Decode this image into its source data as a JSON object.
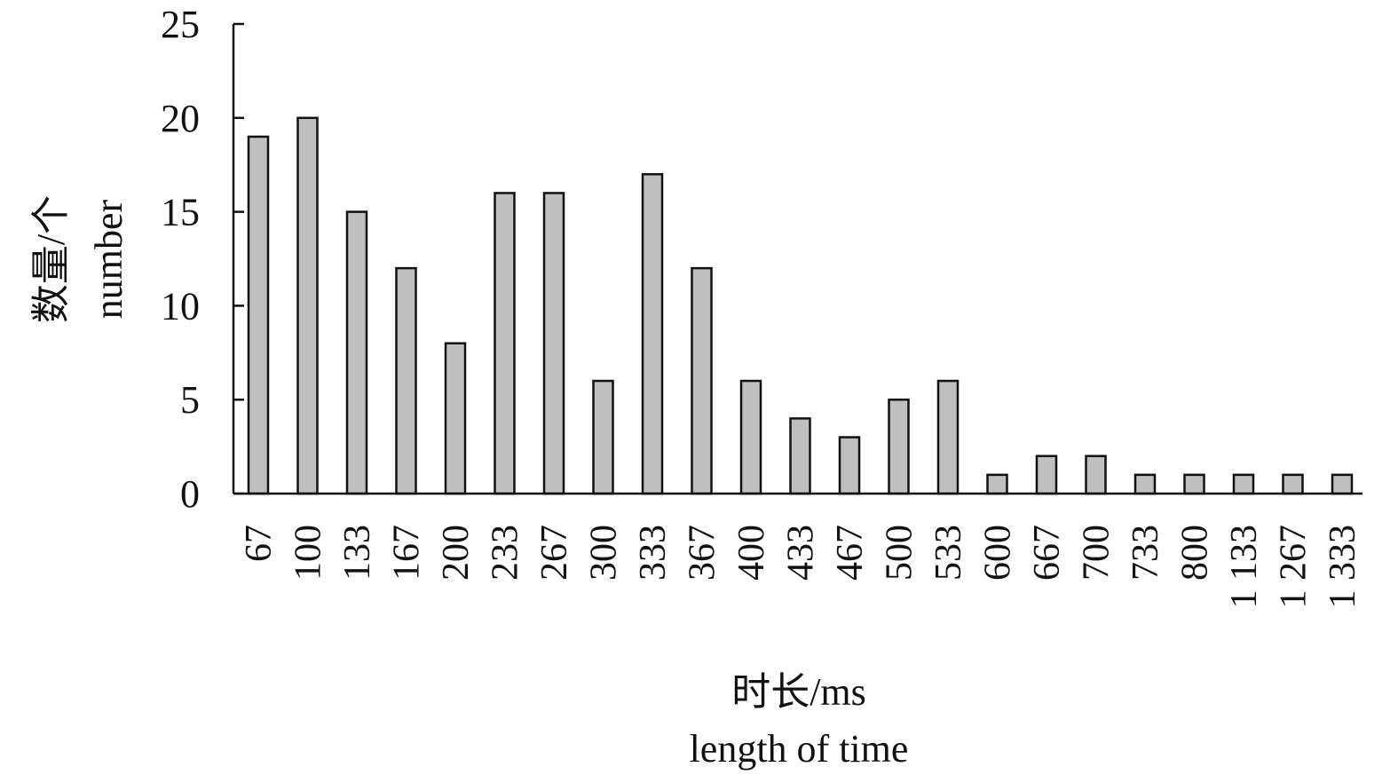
{
  "chart_data": {
    "type": "bar",
    "categories": [
      "67",
      "100",
      "133",
      "167",
      "200",
      "233",
      "267",
      "300",
      "333",
      "367",
      "400",
      "433",
      "467",
      "500",
      "533",
      "600",
      "667",
      "700",
      "733",
      "800",
      "1 133",
      "1 267",
      "1 333"
    ],
    "values": [
      19,
      20,
      15,
      12,
      8,
      16,
      16,
      6,
      17,
      12,
      6,
      4,
      3,
      5,
      6,
      1,
      2,
      2,
      1,
      1,
      1,
      1,
      1
    ],
    "ylim": [
      0,
      25
    ],
    "yticks": [
      0,
      5,
      10,
      15,
      20,
      25
    ],
    "ylabel": [
      "数量/个",
      "number"
    ],
    "xlabel": [
      "时长/ms",
      "length of time"
    ],
    "grid": false,
    "legend": "none",
    "bar_color": "#bfbfbf",
    "edge_color": "#111111"
  }
}
